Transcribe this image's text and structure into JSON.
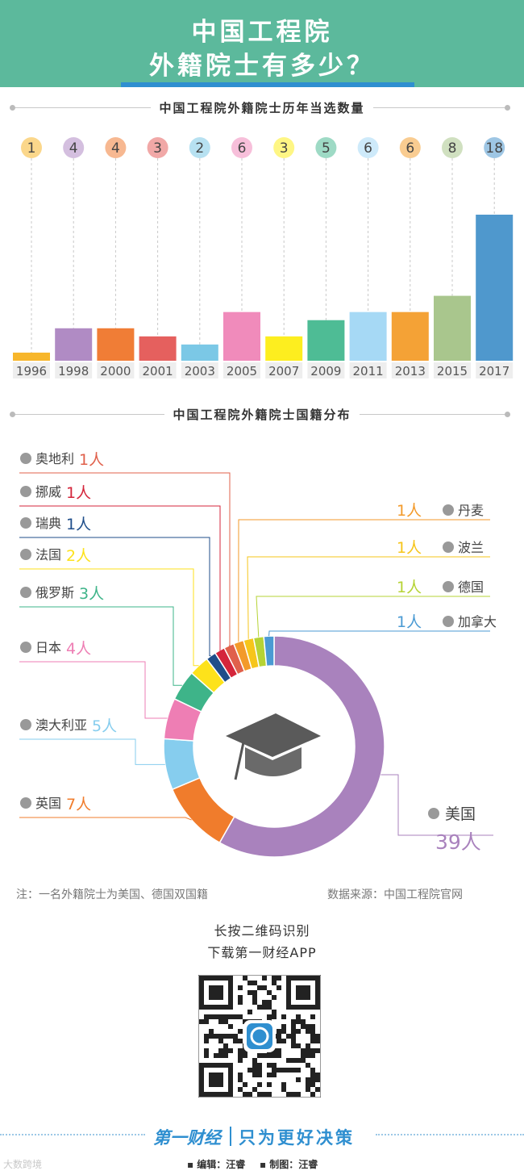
{
  "header": {
    "line1": "中国工程院",
    "line2": "外籍院士有多少？"
  },
  "bar_section_title": "中国工程院外籍院士历年当选数量",
  "donut_section_title": "中国工程院外籍院士国籍分布",
  "chart_data": [
    {
      "type": "bar",
      "title": "中国工程院外籍院士历年当选数量",
      "categories": [
        "1996",
        "1998",
        "2000",
        "2001",
        "2003",
        "2005",
        "2007",
        "2009",
        "2011",
        "2013",
        "2015",
        "2017"
      ],
      "values": [
        1,
        4,
        4,
        3,
        2,
        6,
        3,
        5,
        6,
        6,
        8,
        18
      ],
      "colors": [
        "#f7b62b",
        "#b08bc4",
        "#f07d36",
        "#e5605e",
        "#7bc8e6",
        "#f08bbb",
        "#fdee1f",
        "#4ebc95",
        "#a6d9f5",
        "#f4a236",
        "#a9c68d",
        "#4f98cd"
      ],
      "ylim": [
        0,
        18
      ],
      "grid": false,
      "legend": "none"
    },
    {
      "type": "pie",
      "title": "中国工程院外籍院士国籍分布",
      "unit": "人",
      "slices": [
        {
          "name": "美国",
          "value": 39,
          "label": "39人",
          "color": "#a982bd"
        },
        {
          "name": "英国",
          "value": 7,
          "label": "7人",
          "color": "#f07c2c"
        },
        {
          "name": "澳大利亚",
          "value": 5,
          "label": "5人",
          "color": "#86cdee"
        },
        {
          "name": "日本",
          "value": 4,
          "label": "4人",
          "color": "#ee7eb4"
        },
        {
          "name": "俄罗斯",
          "value": 3,
          "label": "3人",
          "color": "#3eb489"
        },
        {
          "name": "法国",
          "value": 2,
          "label": "2人",
          "color": "#fde21b"
        },
        {
          "name": "瑞典",
          "value": 1,
          "label": "1人",
          "color": "#1f4e8a"
        },
        {
          "name": "挪威",
          "value": 1,
          "label": "1人",
          "color": "#d4253b"
        },
        {
          "name": "奥地利",
          "value": 1,
          "label": "1人",
          "color": "#e0604b"
        },
        {
          "name": "丹麦",
          "value": 1,
          "label": "1人",
          "color": "#f39a2a"
        },
        {
          "name": "波兰",
          "value": 1,
          "label": "1人",
          "color": "#f6c51a"
        },
        {
          "name": "德国",
          "value": 1,
          "label": "1人",
          "color": "#b6d334"
        },
        {
          "name": "加拿大",
          "value": 1,
          "label": "1人",
          "color": "#4a9ad3"
        }
      ],
      "legend": "around",
      "center_icon": "graduation-cap-icon"
    }
  ],
  "notes": {
    "left": "注：一名外籍院士为美国、德国双国籍",
    "right": "数据来源：中国工程院官网"
  },
  "qr": {
    "line1": "长按二维码识别",
    "line2": "下载第一财经APP",
    "icon": "qr-code-icon"
  },
  "footer": {
    "logo": "第一财经",
    "slogan": "只为更好决策",
    "editor": "▪ 编辑：汪睿",
    "producer": "▪ 制图：汪睿",
    "watermark": "大数跨境"
  }
}
